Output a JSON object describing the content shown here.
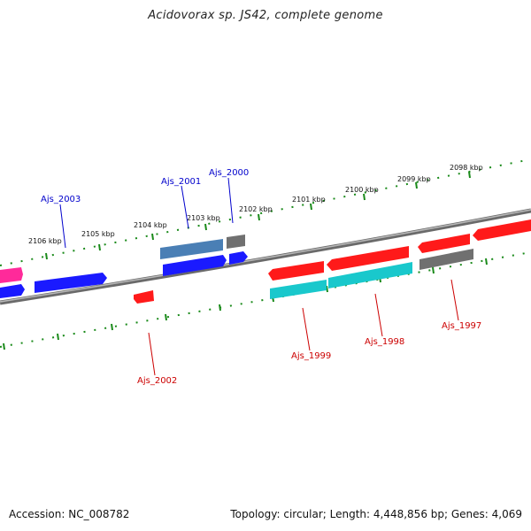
{
  "title": "Acidovorax sp. JS42, complete genome",
  "footer": {
    "accession": "Accession: NC_008782",
    "topology": "Topology: circular; Length: 4,448,856 bp; Genes: 4,069"
  },
  "colors": {
    "blue": "#1a1aff",
    "steelblue": "#4a7fb5",
    "red": "#ff1a1a",
    "grey": "#707070",
    "cyan": "#19c8cc",
    "pink": "#ff2a9a",
    "tick_green": "#1a8a1a",
    "label_blue": "#0000cc",
    "label_red": "#cc0000"
  },
  "scale_ticks": [
    {
      "label": "2106 kbp"
    },
    {
      "label": "2105 kbp"
    },
    {
      "label": "2104 kbp"
    },
    {
      "label": "2103 kbp"
    },
    {
      "label": "2102 kbp"
    },
    {
      "label": "2101 kbp"
    },
    {
      "label": "2100 kbp"
    },
    {
      "label": "2099 kbp"
    },
    {
      "label": "2098 kbp"
    }
  ],
  "gene_labels": {
    "ajs_2003": "Ajs_2003",
    "ajs_2001": "Ajs_2001",
    "ajs_2000": "Ajs_2000",
    "ajs_2002": "Ajs_2002",
    "ajs_1999": "Ajs_1999",
    "ajs_1998": "Ajs_1998",
    "ajs_1997": "Ajs_1997"
  }
}
